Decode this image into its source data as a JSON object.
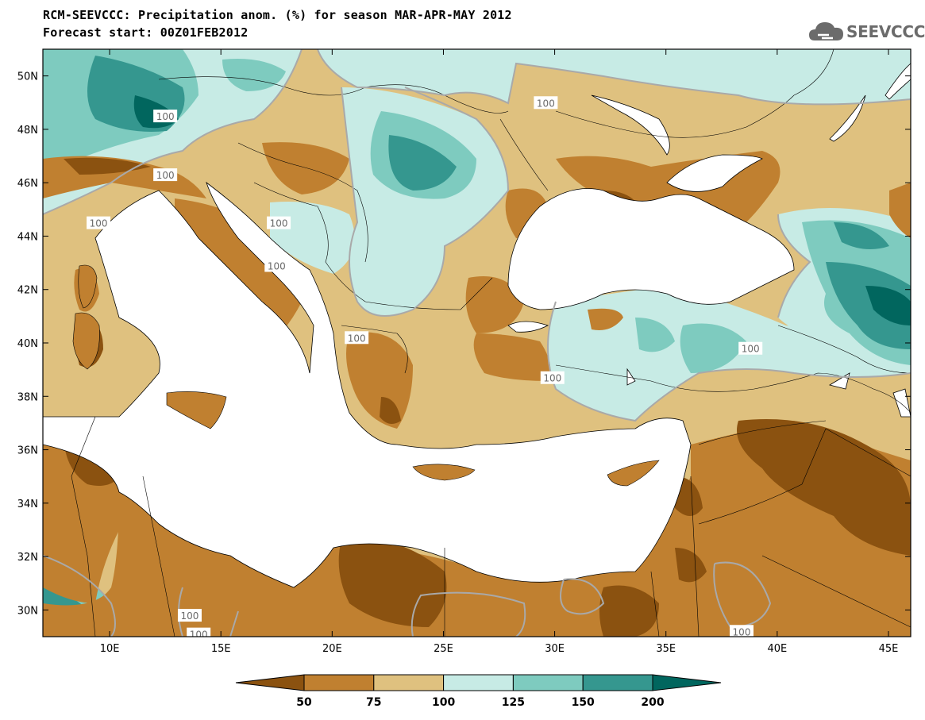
{
  "title_line1": "RCM-SEEVCCC: Precipitation anom. (%) for season MAR-APR-MAY 2012",
  "title_line2": "Forecast start: 00Z01FEB2012",
  "logo": {
    "icon": "cloud-icon",
    "text": "SEEVCCC"
  },
  "axes": {
    "lon_min": 7,
    "lon_max": 46,
    "lat_min": 29,
    "lat_max": 51,
    "x_ticks": [
      {
        "value": 10,
        "label": "10E"
      },
      {
        "value": 15,
        "label": "15E"
      },
      {
        "value": 20,
        "label": "20E"
      },
      {
        "value": 25,
        "label": "25E"
      },
      {
        "value": 30,
        "label": "30E"
      },
      {
        "value": 35,
        "label": "35E"
      },
      {
        "value": 40,
        "label": "40E"
      },
      {
        "value": 45,
        "label": "45E"
      }
    ],
    "y_ticks": [
      {
        "value": 50,
        "label": "50N"
      },
      {
        "value": 48,
        "label": "48N"
      },
      {
        "value": 46,
        "label": "46N"
      },
      {
        "value": 44,
        "label": "44N"
      },
      {
        "value": 42,
        "label": "42N"
      },
      {
        "value": 40,
        "label": "40N"
      },
      {
        "value": 38,
        "label": "38N"
      },
      {
        "value": 36,
        "label": "36N"
      },
      {
        "value": 34,
        "label": "34N"
      },
      {
        "value": 32,
        "label": "32N"
      },
      {
        "value": 30,
        "label": "30N"
      }
    ]
  },
  "colorbar": {
    "colors": [
      "#8b5210",
      "#c08030",
      "#dfc17f",
      "#c7ebe5",
      "#7ecbbf",
      "#35978f",
      "#01665e"
    ],
    "labels": [
      "50",
      "75",
      "100",
      "125",
      "150",
      "200"
    ]
  },
  "contour_labels": [
    {
      "text": "100",
      "lon": 12.5,
      "lat": 48.5
    },
    {
      "text": "100",
      "lon": 29.6,
      "lat": 49.0
    },
    {
      "text": "100",
      "lon": 12.5,
      "lat": 46.3
    },
    {
      "text": "100",
      "lon": 9.5,
      "lat": 44.5
    },
    {
      "text": "100",
      "lon": 17.6,
      "lat": 44.5
    },
    {
      "text": "100",
      "lon": 17.5,
      "lat": 42.9
    },
    {
      "text": "100",
      "lon": 21.1,
      "lat": 40.2
    },
    {
      "text": "100",
      "lon": 29.9,
      "lat": 38.7
    },
    {
      "text": "100",
      "lon": 38.8,
      "lat": 39.8
    },
    {
      "text": "100",
      "lon": 13.6,
      "lat": 29.8
    },
    {
      "text": "100",
      "lon": 14.0,
      "lat": 29.1
    },
    {
      "text": "100",
      "lon": 38.4,
      "lat": 29.2
    }
  ]
}
